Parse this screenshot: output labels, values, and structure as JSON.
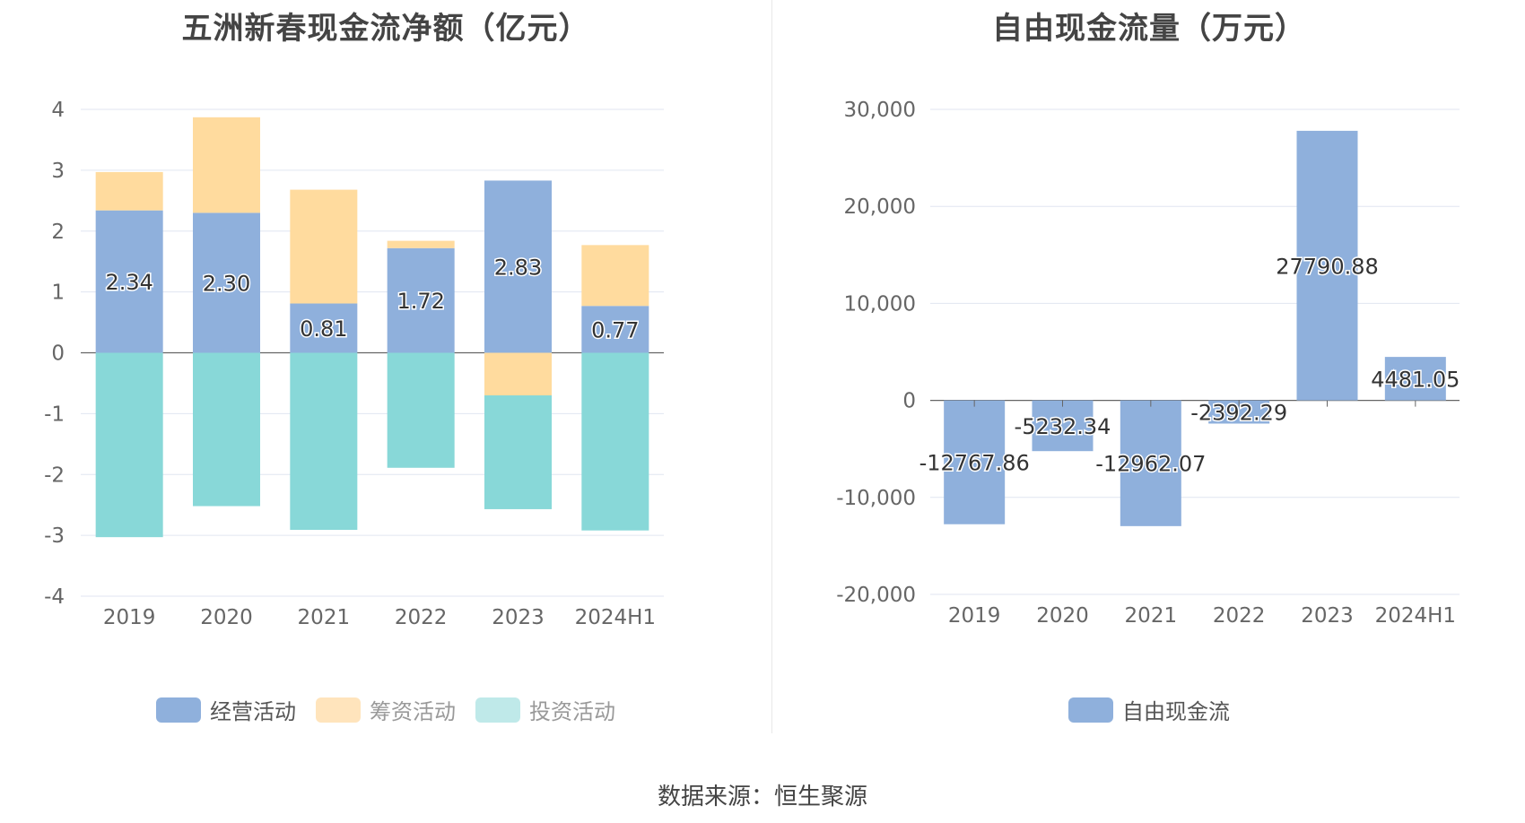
{
  "source_text": "数据来源：恒生聚源",
  "colors": {
    "operating": "#8fb0dc",
    "financing": "#ffdb9e",
    "investing": "#88d8d8",
    "free_cash": "#8fb0dc"
  },
  "chart_data": [
    {
      "type": "bar",
      "stacked": true,
      "title": "五洲新春现金流净额（亿元）",
      "categories": [
        "2019",
        "2020",
        "2021",
        "2022",
        "2023",
        "2024H1"
      ],
      "ylim": [
        -4,
        4
      ],
      "yticks": [
        "4",
        "3",
        "2",
        "1",
        "0",
        "-1",
        "-2",
        "-3",
        "-4"
      ],
      "ytick_values": [
        4,
        3,
        2,
        1,
        0,
        -1,
        -2,
        -3,
        -4
      ],
      "series": [
        {
          "name": "经营活动",
          "values": [
            2.34,
            2.3,
            0.81,
            1.72,
            2.83,
            0.77
          ],
          "labels": [
            "2.34",
            "2.30",
            "0.81",
            "1.72",
            "2.83",
            "0.77"
          ]
        },
        {
          "name": "筹资活动",
          "values": [
            0.63,
            1.57,
            1.87,
            0.12,
            -0.7,
            1.0
          ]
        },
        {
          "name": "投资活动",
          "values": [
            -3.03,
            -2.52,
            -2.91,
            -1.89,
            -1.87,
            -2.92
          ]
        }
      ],
      "grid": true,
      "legend": "bottom"
    },
    {
      "type": "bar",
      "title": "自由现金流量（万元）",
      "categories": [
        "2019",
        "2020",
        "2021",
        "2022",
        "2023",
        "2024H1"
      ],
      "ylim": [
        -20000,
        30000
      ],
      "yticks": [
        "30,000",
        "20,000",
        "10,000",
        "0",
        "-10,000",
        "-20,000"
      ],
      "ytick_values": [
        30000,
        20000,
        10000,
        0,
        -10000,
        -20000
      ],
      "series": [
        {
          "name": "自由现金流",
          "values": [
            -12767.86,
            -5232.34,
            -12962.07,
            -2392.29,
            27790.88,
            4481.05
          ],
          "labels": [
            "-12767.86",
            "-5232.34",
            "-12962.07",
            "-2392.29",
            "27790.88",
            "4481.05"
          ]
        }
      ],
      "grid": true,
      "legend": "bottom"
    }
  ]
}
